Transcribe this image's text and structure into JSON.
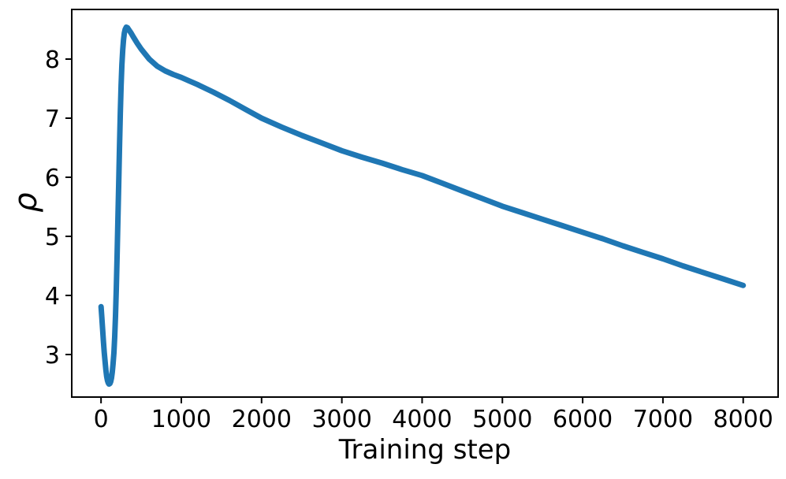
{
  "figure": {
    "background": "#ffffff",
    "text_color": "#000000",
    "spine_color": "#000000"
  },
  "chart_data": {
    "type": "line",
    "title": "",
    "xlabel": "Training step",
    "ylabel": "ρ",
    "xlim": [
      -365,
      8435
    ],
    "ylim": [
      2.28,
      8.84
    ],
    "x_ticks": [
      0,
      1000,
      2000,
      3000,
      4000,
      5000,
      6000,
      7000,
      8000
    ],
    "y_ticks": [
      3,
      4,
      5,
      6,
      7,
      8
    ],
    "grid": false,
    "legend": null,
    "series": [
      {
        "name": "rho",
        "color": "#1f77b4",
        "points": [
          [
            0,
            3.81
          ],
          [
            10,
            3.62
          ],
          [
            20,
            3.42
          ],
          [
            30,
            3.22
          ],
          [
            40,
            3.04
          ],
          [
            50,
            2.88
          ],
          [
            60,
            2.74
          ],
          [
            70,
            2.63
          ],
          [
            80,
            2.56
          ],
          [
            90,
            2.52
          ],
          [
            100,
            2.5
          ],
          [
            110,
            2.51
          ],
          [
            120,
            2.54
          ],
          [
            130,
            2.6
          ],
          [
            140,
            2.7
          ],
          [
            150,
            2.84
          ],
          [
            160,
            3.03
          ],
          [
            170,
            3.3
          ],
          [
            180,
            3.65
          ],
          [
            190,
            4.1
          ],
          [
            200,
            4.65
          ],
          [
            210,
            5.25
          ],
          [
            220,
            5.9
          ],
          [
            230,
            6.52
          ],
          [
            240,
            7.08
          ],
          [
            250,
            7.55
          ],
          [
            260,
            7.9
          ],
          [
            270,
            8.16
          ],
          [
            280,
            8.33
          ],
          [
            290,
            8.44
          ],
          [
            300,
            8.5
          ],
          [
            315,
            8.54
          ],
          [
            330,
            8.53
          ],
          [
            350,
            8.49
          ],
          [
            375,
            8.44
          ],
          [
            400,
            8.38
          ],
          [
            450,
            8.27
          ],
          [
            500,
            8.17
          ],
          [
            600,
            8.0
          ],
          [
            700,
            7.88
          ],
          [
            800,
            7.8
          ],
          [
            900,
            7.74
          ],
          [
            1000,
            7.69
          ],
          [
            1100,
            7.63
          ],
          [
            1200,
            7.57
          ],
          [
            1400,
            7.44
          ],
          [
            1600,
            7.3
          ],
          [
            1800,
            7.15
          ],
          [
            2000,
            7.0
          ],
          [
            2250,
            6.85
          ],
          [
            2500,
            6.71
          ],
          [
            2750,
            6.58
          ],
          [
            3000,
            6.45
          ],
          [
            3250,
            6.34
          ],
          [
            3500,
            6.24
          ],
          [
            3750,
            6.13
          ],
          [
            4000,
            6.03
          ],
          [
            4250,
            5.9
          ],
          [
            4500,
            5.77
          ],
          [
            4750,
            5.64
          ],
          [
            5000,
            5.51
          ],
          [
            5250,
            5.4
          ],
          [
            5500,
            5.29
          ],
          [
            5750,
            5.18
          ],
          [
            6000,
            5.07
          ],
          [
            6250,
            4.96
          ],
          [
            6500,
            4.84
          ],
          [
            6750,
            4.73
          ],
          [
            7000,
            4.62
          ],
          [
            7250,
            4.5
          ],
          [
            7500,
            4.39
          ],
          [
            7750,
            4.28
          ],
          [
            8000,
            4.17
          ]
        ]
      }
    ]
  }
}
